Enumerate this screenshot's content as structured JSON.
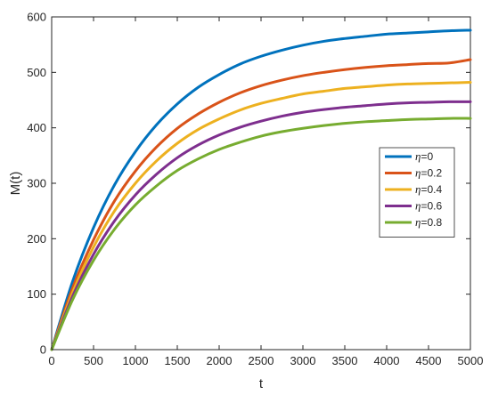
{
  "chart_data": {
    "type": "line",
    "title": "",
    "xlabel": "t",
    "ylabel": "M(t)",
    "xlim": [
      0,
      5000
    ],
    "ylim": [
      0,
      600
    ],
    "xticks": [
      0,
      500,
      1000,
      1500,
      2000,
      2500,
      3000,
      3500,
      4000,
      4500,
      5000
    ],
    "yticks": [
      0,
      100,
      200,
      300,
      400,
      500,
      600
    ],
    "grid": false,
    "legend_position": "right",
    "legend_symbol": "η",
    "x": [
      0,
      250,
      500,
      750,
      1000,
      1250,
      1500,
      1750,
      2000,
      2250,
      2500,
      2750,
      3000,
      3250,
      3500,
      3750,
      4000,
      4250,
      4500,
      4750,
      5000
    ],
    "series": [
      {
        "name": "=0",
        "color": "#0072BD",
        "values": [
          0,
          123,
          220,
          297,
          357,
          405,
          443,
          473,
          496,
          515,
          529,
          540,
          549,
          556,
          561,
          565,
          569,
          571,
          573,
          575,
          576
        ]
      },
      {
        "name": "=0.2",
        "color": "#D95319",
        "values": [
          0,
          111,
          198,
          268,
          322,
          365,
          399,
          425,
          446,
          463,
          476,
          486,
          494,
          500,
          505,
          509,
          512,
          514,
          516,
          517,
          523
        ]
      },
      {
        "name": "=0.4",
        "color": "#EDB120",
        "values": [
          0,
          103,
          185,
          250,
          300,
          340,
          372,
          397,
          416,
          432,
          444,
          453,
          461,
          466,
          471,
          474,
          477,
          479,
          480,
          481,
          482
        ]
      },
      {
        "name": "=0.6",
        "color": "#7E2F8E",
        "values": [
          0,
          96,
          172,
          232,
          279,
          316,
          346,
          369,
          387,
          401,
          412,
          421,
          428,
          433,
          437,
          440,
          443,
          445,
          446,
          447,
          447
        ]
      },
      {
        "name": "=0.8",
        "color": "#77AC30",
        "values": [
          0,
          90,
          161,
          217,
          261,
          295,
          323,
          344,
          361,
          374,
          385,
          393,
          399,
          404,
          408,
          411,
          413,
          415,
          416,
          417,
          417
        ]
      }
    ]
  }
}
